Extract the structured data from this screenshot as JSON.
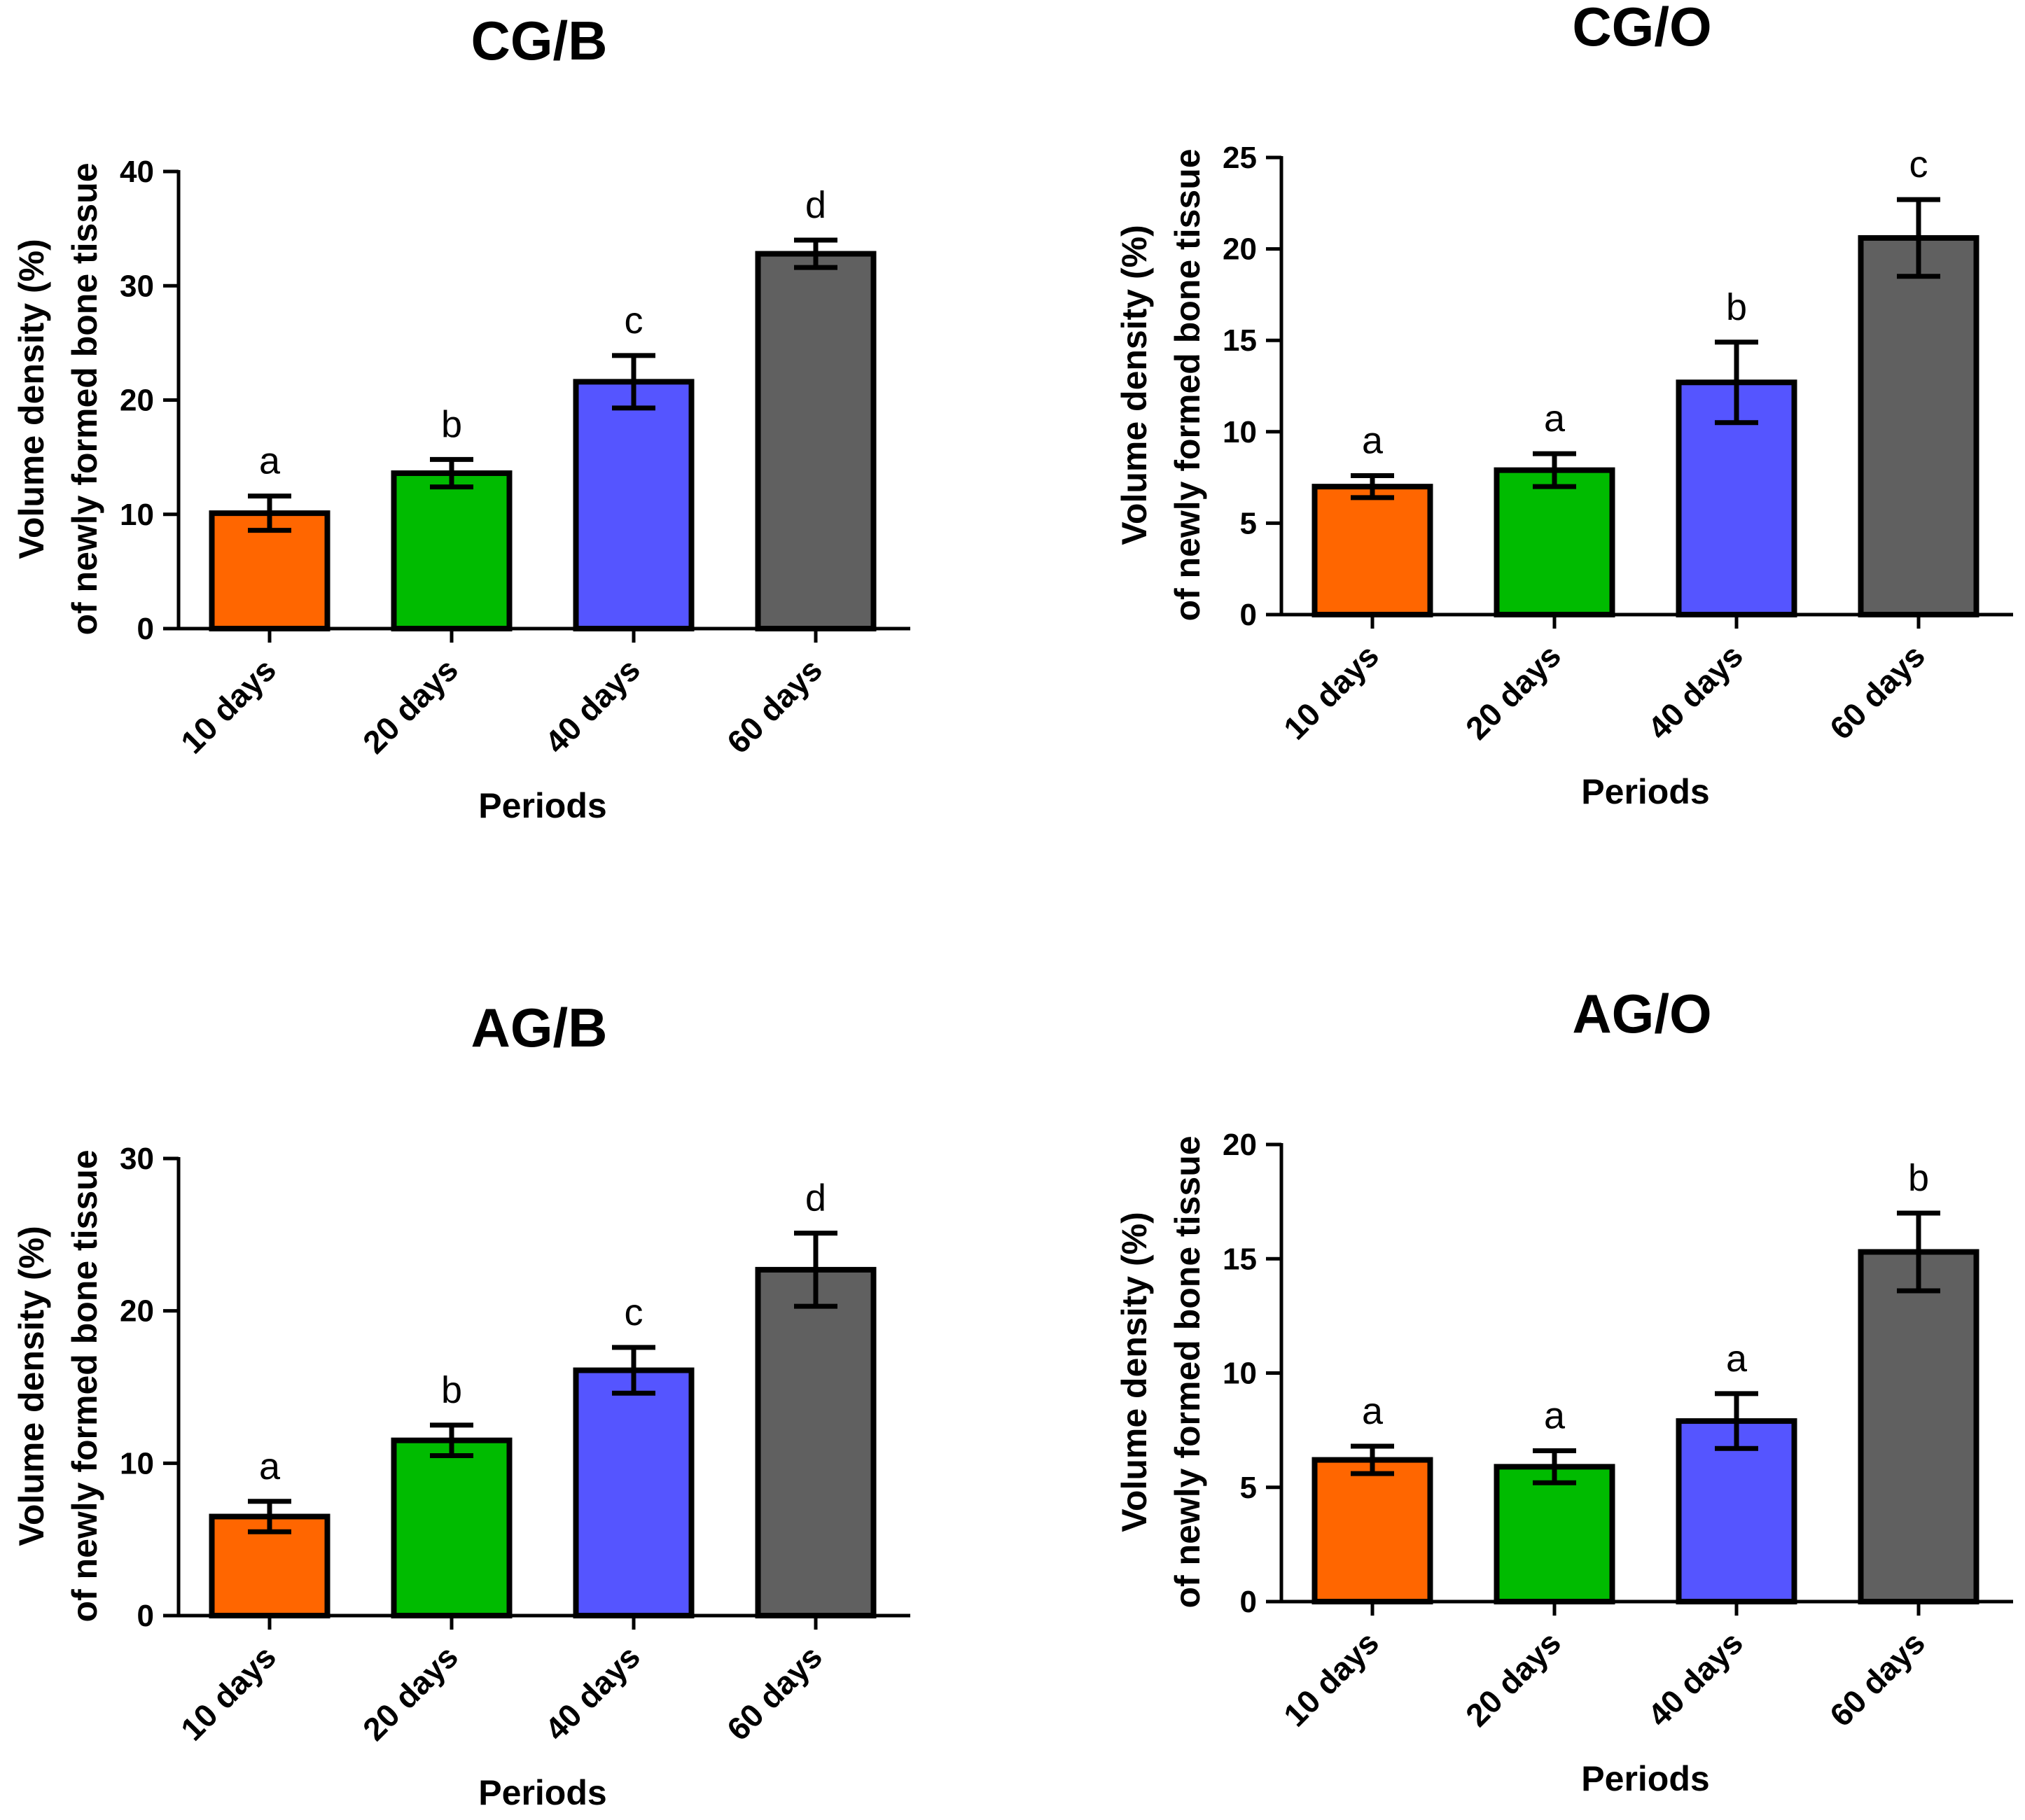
{
  "chart_data": [
    {
      "type": "bar",
      "title": "CG/B",
      "xlabel": "Periods",
      "ylabel": [
        "Volume density (%)",
        "of newly formed bone tissue"
      ],
      "categories": [
        "10 days",
        "20 days",
        "40 days",
        "60 days"
      ],
      "values": [
        10.1,
        13.6,
        21.6,
        32.8
      ],
      "errors": [
        1.5,
        1.2,
        2.3,
        1.2
      ],
      "significance": [
        "a",
        "b",
        "c",
        "d"
      ],
      "colors": [
        "#FF6600",
        "#00BB00",
        "#5555FF",
        "#606060"
      ],
      "ylim": [
        0,
        40
      ],
      "yticks": [
        0,
        10,
        20,
        30,
        40
      ]
    },
    {
      "type": "bar",
      "title": "CG/O",
      "xlabel": "Periods",
      "ylabel": [
        "Volume density (%)",
        "of newly formed bone tissue"
      ],
      "categories": [
        "10 days",
        "20 days",
        "40 days",
        "60 days"
      ],
      "values": [
        7.0,
        7.9,
        12.7,
        20.6
      ],
      "errors": [
        0.6,
        0.9,
        2.2,
        2.1
      ],
      "significance": [
        "a",
        "a",
        "b",
        "c"
      ],
      "colors": [
        "#FF6600",
        "#00BB00",
        "#5555FF",
        "#606060"
      ],
      "ylim": [
        0,
        25
      ],
      "yticks": [
        0,
        5,
        10,
        15,
        20,
        25
      ]
    },
    {
      "type": "bar",
      "title": "AG/B",
      "xlabel": "Periods",
      "ylabel": [
        "Volume density (%)",
        "of newly formed bone tissue"
      ],
      "categories": [
        "10 days",
        "20 days",
        "40 days",
        "60 days"
      ],
      "values": [
        6.5,
        11.5,
        16.1,
        22.7
      ],
      "errors": [
        1.0,
        1.0,
        1.5,
        2.4
      ],
      "significance": [
        "a",
        "b",
        "c",
        "d"
      ],
      "colors": [
        "#FF6600",
        "#00BB00",
        "#5555FF",
        "#606060"
      ],
      "ylim": [
        0,
        30
      ],
      "yticks": [
        0,
        10,
        20,
        30
      ]
    },
    {
      "type": "bar",
      "title": "AG/O",
      "xlabel": "Periods",
      "ylabel": [
        "Volume density (%)",
        "of newly formed bone tissue"
      ],
      "categories": [
        "10 days",
        "20 days",
        "40 days",
        "60 days"
      ],
      "values": [
        6.2,
        5.9,
        7.9,
        15.3
      ],
      "errors": [
        0.6,
        0.7,
        1.2,
        1.7
      ],
      "significance": [
        "a",
        "a",
        "a",
        "b"
      ],
      "colors": [
        "#FF6600",
        "#00BB00",
        "#5555FF",
        "#606060"
      ],
      "ylim": [
        0,
        20
      ],
      "yticks": [
        0,
        5,
        10,
        15,
        20
      ]
    }
  ]
}
